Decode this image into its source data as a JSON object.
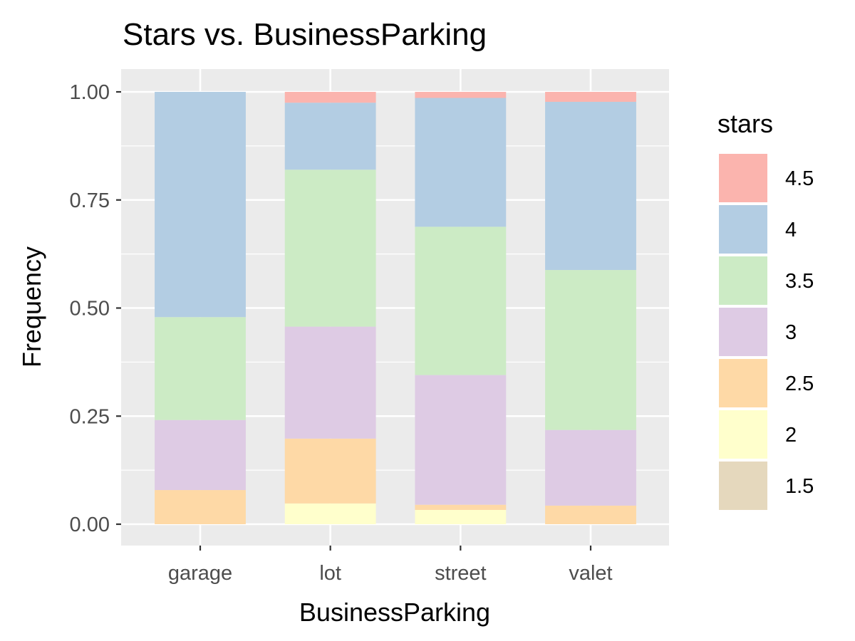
{
  "chart_data": {
    "type": "bar",
    "stacked": true,
    "title": "Stars vs. BusinessParking",
    "xlabel": "BusinessParking",
    "ylabel": "Frequency",
    "categories": [
      "garage",
      "lot",
      "street",
      "valet"
    ],
    "ylim": [
      0,
      1
    ],
    "yticks": [
      0,
      0.25,
      0.5,
      0.75,
      1
    ],
    "ytick_labels": [
      "0.00",
      "0.25",
      "0.50",
      "0.75",
      "1.00"
    ],
    "grid": true,
    "legend": {
      "title": "stars",
      "position": "right"
    },
    "series": [
      {
        "name": "1.5",
        "color": "#E5D8BD",
        "values": [
          0,
          0,
          0,
          0
        ]
      },
      {
        "name": "2",
        "color": "#FFFFCC",
        "values": [
          0,
          0.048,
          0.033,
          0
        ]
      },
      {
        "name": "2.5",
        "color": "#FED9A6",
        "values": [
          0.079,
          0.15,
          0.012,
          0.043
        ]
      },
      {
        "name": "3",
        "color": "#DECBE4",
        "values": [
          0.162,
          0.259,
          0.3,
          0.175
        ]
      },
      {
        "name": "3.5",
        "color": "#CCEBC5",
        "values": [
          0.238,
          0.363,
          0.343,
          0.37
        ]
      },
      {
        "name": "4",
        "color": "#B3CDE3",
        "values": [
          0.521,
          0.155,
          0.298,
          0.389
        ]
      },
      {
        "name": "4.5",
        "color": "#FBB4AE",
        "values": [
          0,
          0.025,
          0.014,
          0.023
        ]
      }
    ]
  }
}
